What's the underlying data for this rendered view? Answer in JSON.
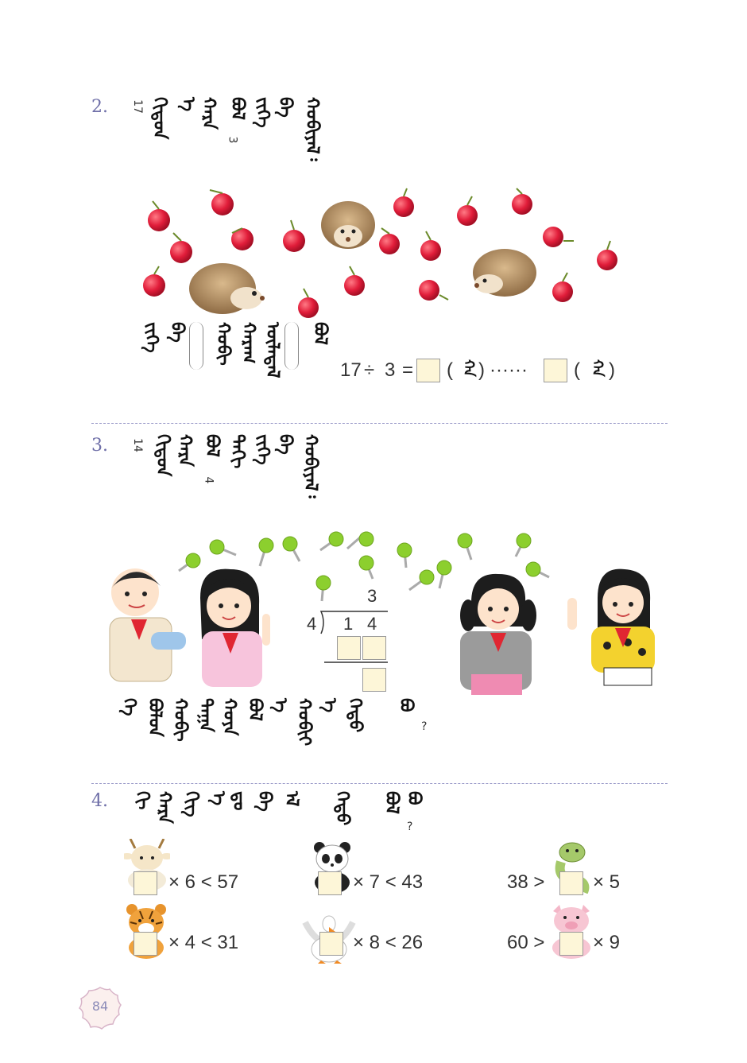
{
  "page": {
    "number": "84"
  },
  "q2": {
    "num": "2.",
    "value_17": "17",
    "value_3": "3",
    "mongol_prompt": [
      "ᠬᠢᠳᠤᠨ",
      "ᠡ",
      "ᠬᠠᠷᠠ",
      "ᠪᠣᠯ",
      "ᠵᠢᠭᠡ",
      "ᠪᠠ",
      "ᠬᠤᠪᠢᠶᠠᠯ᠄"
    ],
    "mongol_answer": [
      "ᠵᠢᠭᠡ",
      "ᠪᠡ",
      "ᠬᠤᠪᠢ",
      "ᠬᠠᠷᠠᠭ",
      "ᠦᠯᠡᠳᠡᠯ",
      "ᠪᠣᠯ"
    ],
    "equation": {
      "dividend": "17",
      "op": "÷",
      "divisor": "3",
      "equals": "=",
      "dots": "······",
      "unit": "ᠬᠠ"
    }
  },
  "q3": {
    "num": "3.",
    "value_14": "14",
    "value_4": "4",
    "mongol_prompt": [
      "ᠬᠢᠳᠤᠨ",
      "ᠬᠠᠷᠠ",
      "ᠪᠣᠯ",
      "ᠳᠠᠬᠢ",
      "ᠵᠢᠭᠡ",
      "ᠪᠠ",
      "ᠬᠤᠪᠢᠶᠠᠯ᠄"
    ],
    "division": {
      "quotient": "3",
      "divisor": "4",
      "dividend_1": "1",
      "dividend_2": "4"
    },
    "mongol_question": [
      "ᠬᠡ",
      "ᠪᠤᠯᠤᠨ",
      "ᠬᠤᠪᠢ",
      "ᠲᠠᠭᠠ",
      "ᠬᠣᠶᠠ",
      "ᠪᠣᠯ",
      "ᠡ",
      "ᠬᠤᠪᠢᠶ",
      "ᠡ",
      "ᠬᠡᠳᠦ",
      "ᠪᠤ"
    ],
    "question_mark": "?"
  },
  "q4": {
    "num": "4.",
    "mongol_prompt": [
      "ᠬᠢ",
      "ᠬᠠᠷᠠ",
      "ᠬᠢᠭ",
      "ᠡ",
      "ᠳᠤ",
      "ᠪᠠ",
      "ᠡᠯ",
      "ᠬᠡᠳᠦ",
      "ᠪᠣᠯ",
      "ᠪᠤ"
    ],
    "question_mark": "?",
    "inequalities": [
      {
        "animal": "goat",
        "left": "",
        "right": "× 6 < 57"
      },
      {
        "animal": "panda",
        "left": "",
        "right": "× 7 < 43"
      },
      {
        "animal": "snake",
        "left": "38 >",
        "right": "× 5"
      },
      {
        "animal": "tiger",
        "left": "",
        "right": "× 4 < 31"
      },
      {
        "animal": "goose",
        "left": "",
        "right": "× 8 < 26"
      },
      {
        "animal": "pig",
        "left": "60 >",
        "right": "× 9"
      }
    ]
  },
  "colors": {
    "accent": "#6f6fa8",
    "box_fill": "#fdf6d8",
    "apple": "#e11d3a",
    "lollipop": "#8ccf2e",
    "divider": "#9b9bc9"
  }
}
